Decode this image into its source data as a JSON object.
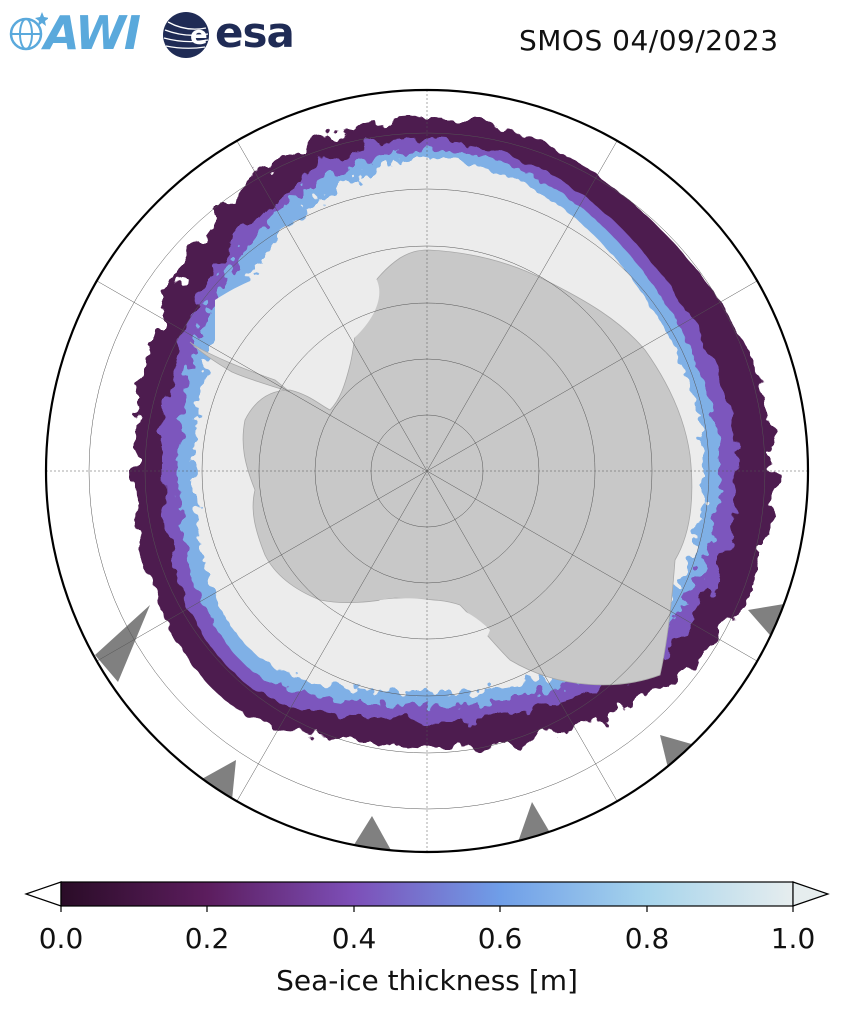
{
  "header": {
    "title": "SMOS 04/09/2023",
    "logo_awi_text": "AWI",
    "logo_esa_text": "esa"
  },
  "map": {
    "projection": "south-polar-stereographic",
    "graticule": true,
    "colors": {
      "land": "#c8c8c8",
      "open_water": "#ffffff",
      "thick_ice": "#ececec",
      "no_data": "#808080",
      "outline": "#000000"
    }
  },
  "colorbar": {
    "label": "Sea-ice thickness [m]",
    "ticks": [
      "0.0",
      "0.2",
      "0.4",
      "0.6",
      "0.8",
      "1.0"
    ],
    "min": 0.0,
    "max": 1.0,
    "extend": "both",
    "colormap": [
      "#2a0c27",
      "#5c1d5e",
      "#7d4fb8",
      "#6f9ee8",
      "#a6d4ec",
      "#e6edee"
    ]
  }
}
